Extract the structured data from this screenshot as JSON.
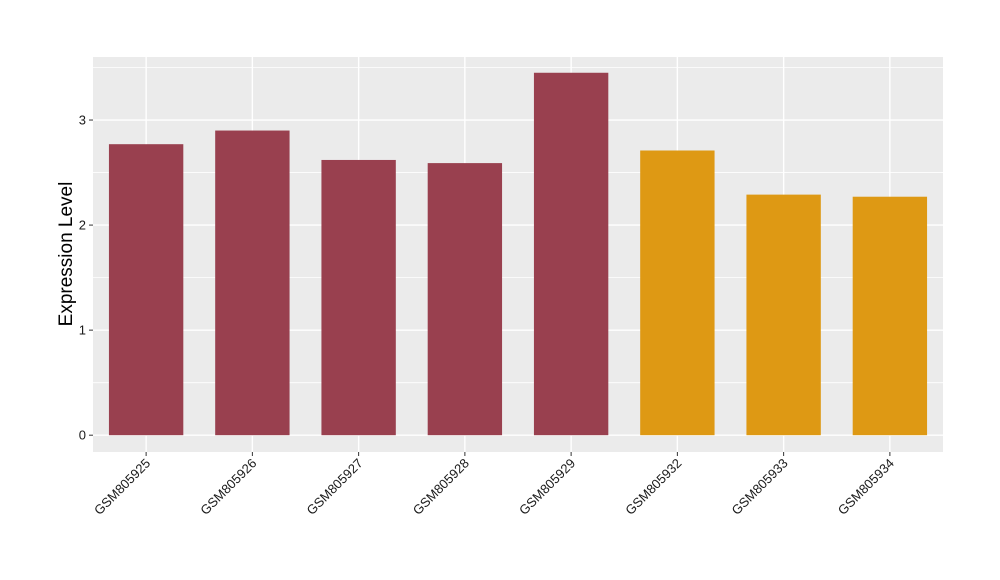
{
  "chart_data": {
    "type": "bar",
    "categories": [
      "GSM805925",
      "GSM805926",
      "GSM805927",
      "GSM805928",
      "GSM805929",
      "GSM805932",
      "GSM805933",
      "GSM805934"
    ],
    "values": [
      2.77,
      2.9,
      2.62,
      2.59,
      3.45,
      2.71,
      2.29,
      2.27
    ],
    "groups": [
      1,
      1,
      1,
      1,
      1,
      2,
      2,
      2
    ],
    "group_colors": [
      "#99404f",
      "#de9914"
    ],
    "title": "",
    "xlabel": "",
    "ylabel": "Expression Level",
    "ylim": [
      -0.16,
      3.6
    ],
    "yticks": [
      0,
      1,
      2,
      3
    ],
    "ytick_labels": [
      "0",
      "1",
      "2",
      "3"
    ],
    "grid": true,
    "panel_background": "#ebebeb",
    "grid_color": "#ffffff",
    "legend": "none"
  }
}
